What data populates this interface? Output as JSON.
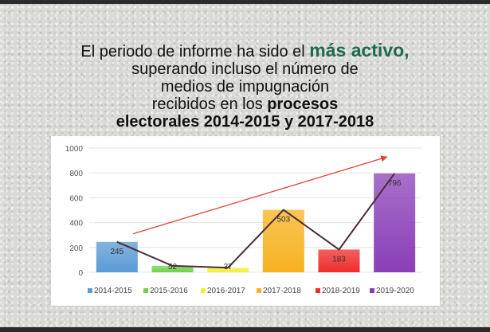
{
  "heading": {
    "line1_prefix": "El periodo de informe ha sido el ",
    "line1_accent": "más activo",
    "line1_suffix": ",",
    "line2": "superando incluso el número de",
    "line3": "medios de impugnación",
    "line4_prefix": "recibidos en los ",
    "line4_bold": "procesos",
    "line5": "electorales 2014-2015 y 2017-2018"
  },
  "chart_data": {
    "type": "bar",
    "title": "",
    "xlabel": "",
    "ylabel": "",
    "categories": [
      "2014-2015",
      "2015-2016",
      "2016-2017",
      "2017-2018",
      "2018-2019",
      "2019-2020"
    ],
    "values": [
      245,
      52,
      37,
      503,
      183,
      796
    ],
    "ylim": [
      0,
      1000
    ],
    "yticks": [
      "0",
      "200",
      "400",
      "600",
      "800",
      "1000"
    ],
    "colors": [
      "#5b9bd5",
      "#6fd14a",
      "#f2ee3a",
      "#f6b21f",
      "#ef2b2b",
      "#8a3fb8"
    ],
    "legend_position": "bottom",
    "grid": true,
    "overlay_line": "connects bar tops",
    "trend_arrow": "rising red arrow"
  }
}
